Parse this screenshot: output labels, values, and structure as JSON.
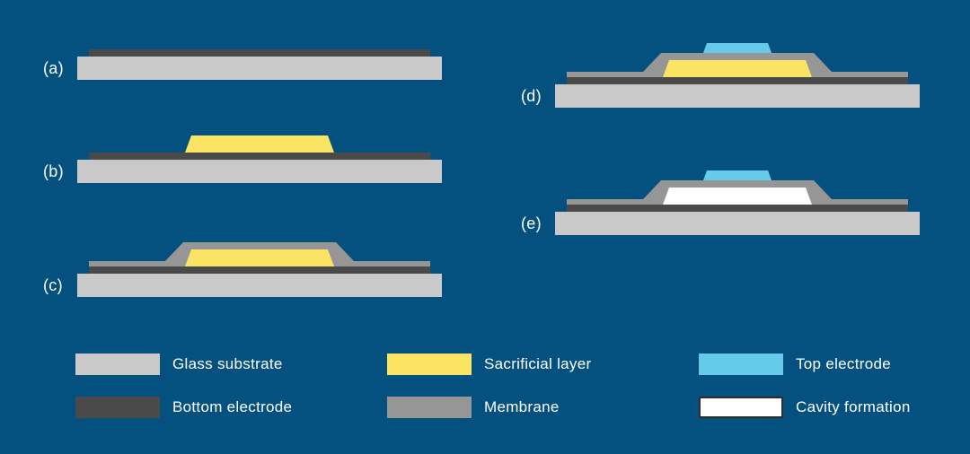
{
  "colors": {
    "background": "#04517f",
    "glass_substrate": "#c9c9c9",
    "bottom_electrode": "#4a4a4a",
    "sacrificial_layer": "#fbe464",
    "membrane": "#969696",
    "top_electrode": "#66cbe8",
    "cavity_formation": "#ffffff",
    "cavity_swatch_border": "#2e2e2e",
    "text": "#ffffff"
  },
  "steps": [
    {
      "label": "(a)",
      "layers": [
        "glass_substrate",
        "bottom_electrode"
      ]
    },
    {
      "label": "(b)",
      "layers": [
        "glass_substrate",
        "bottom_electrode",
        "sacrificial_layer"
      ]
    },
    {
      "label": "(c)",
      "layers": [
        "glass_substrate",
        "bottom_electrode",
        "membrane",
        "sacrificial_layer"
      ]
    },
    {
      "label": "(d)",
      "layers": [
        "glass_substrate",
        "bottom_electrode",
        "membrane",
        "sacrificial_layer",
        "top_electrode"
      ]
    },
    {
      "label": "(e)",
      "layers": [
        "glass_substrate",
        "bottom_electrode",
        "membrane",
        "cavity_formation",
        "top_electrode"
      ]
    }
  ],
  "legend": [
    {
      "key": "glass_substrate",
      "label": "Glass substrate"
    },
    {
      "key": "bottom_electrode",
      "label": "Bottom electrode"
    },
    {
      "key": "sacrificial_layer",
      "label": "Sacrificial layer"
    },
    {
      "key": "membrane",
      "label": "Membrane"
    },
    {
      "key": "top_electrode",
      "label": "Top electrode"
    },
    {
      "key": "cavity_formation",
      "label": "Cavity formation"
    }
  ]
}
